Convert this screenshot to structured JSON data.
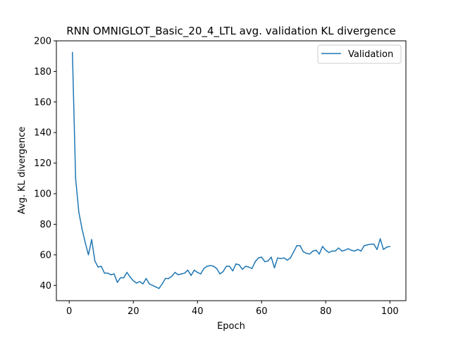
{
  "chart_data": {
    "type": "line",
    "title": "RNN OMNIGLOT_Basic_20_4_LTL avg. validation KL divergence",
    "xlabel": "Epoch",
    "ylabel": "Avg. KL divergence",
    "xlim": [
      -4,
      105
    ],
    "ylim": [
      30,
      200
    ],
    "xticks": [
      0,
      20,
      40,
      60,
      80,
      100
    ],
    "yticks": [
      40,
      60,
      80,
      100,
      120,
      140,
      160,
      180,
      200
    ],
    "grid": false,
    "legend_position": "top-right",
    "colors": {
      "series": "#1f77b4"
    },
    "series": [
      {
        "name": "Validation",
        "x": [
          1,
          2,
          3,
          4,
          5,
          6,
          7,
          8,
          9,
          10,
          11,
          12,
          13,
          14,
          15,
          16,
          17,
          18,
          19,
          20,
          21,
          22,
          23,
          24,
          25,
          26,
          27,
          28,
          29,
          30,
          31,
          32,
          33,
          34,
          35,
          36,
          37,
          38,
          39,
          40,
          41,
          42,
          43,
          44,
          45,
          46,
          47,
          48,
          49,
          50,
          51,
          52,
          53,
          54,
          55,
          56,
          57,
          58,
          59,
          60,
          61,
          62,
          63,
          64,
          65,
          66,
          67,
          68,
          69,
          70,
          71,
          72,
          73,
          74,
          75,
          76,
          77,
          78,
          79,
          80,
          81,
          82,
          83,
          84,
          85,
          86,
          87,
          88,
          89,
          90,
          91,
          92,
          93,
          94,
          95,
          96,
          97,
          98,
          99,
          100
        ],
        "y": [
          192.5,
          110,
          88,
          77,
          68,
          60,
          70,
          56,
          52,
          52.5,
          48,
          48,
          47,
          47.5,
          42,
          45,
          45,
          48.5,
          45.5,
          43,
          41.5,
          42.5,
          41,
          44.5,
          41,
          40,
          39,
          38,
          41,
          44.5,
          44.5,
          46,
          48.5,
          47,
          47.5,
          48,
          50,
          46.5,
          50,
          48.5,
          47.5,
          51,
          52.5,
          53,
          52.5,
          51,
          47.5,
          49,
          52.5,
          52.5,
          49.5,
          54,
          53.5,
          50.5,
          52.5,
          52,
          51,
          55.5,
          58,
          58.5,
          55.5,
          56,
          58.5,
          51.5,
          58,
          57.5,
          58,
          56.5,
          58,
          62,
          66,
          66,
          62,
          61,
          60.5,
          62.5,
          63,
          60.5,
          65.5,
          63,
          61.5,
          62.5,
          62.5,
          64.5,
          62.5,
          63,
          64,
          63,
          62.5,
          63.5,
          62.5,
          66,
          66.5,
          67,
          67,
          63.5,
          70.5,
          63.5,
          65,
          65.5
        ]
      }
    ]
  }
}
